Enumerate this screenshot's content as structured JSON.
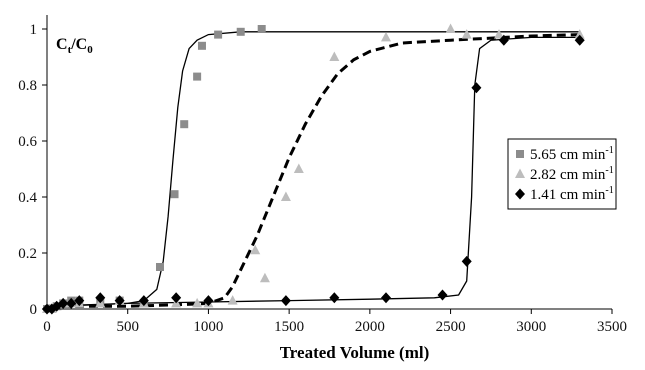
{
  "chart_data": {
    "type": "scatter",
    "xlabel": "Treated Volume (ml)",
    "ylabel": "Ct/C0",
    "xlim": [
      0,
      3500
    ],
    "ylim": [
      0,
      1.05
    ],
    "x_ticks": [
      "0",
      "500",
      "1000",
      "1500",
      "2000",
      "2500",
      "3000",
      "3500"
    ],
    "y_ticks": [
      "0",
      "0.2",
      "0.4",
      "0.6",
      "0.8",
      "1"
    ],
    "grid": false,
    "legend_position": "right",
    "series": [
      {
        "name": "5.65 cm min-1",
        "legend_main": "5.65 cm min",
        "legend_sup": "-1",
        "marker": "square",
        "color": "#8c8c8c",
        "points": [
          [
            0,
            0.0
          ],
          [
            30,
            0.0
          ],
          [
            60,
            0.01
          ],
          [
            100,
            0.02
          ],
          [
            150,
            0.03
          ],
          [
            200,
            0.03
          ],
          [
            330,
            0.03
          ],
          [
            450,
            0.03
          ],
          [
            600,
            0.02
          ],
          [
            700,
            0.15
          ],
          [
            790,
            0.41
          ],
          [
            850,
            0.66
          ],
          [
            930,
            0.83
          ],
          [
            960,
            0.94
          ],
          [
            1060,
            0.98
          ],
          [
            1200,
            0.99
          ],
          [
            1330,
            1.0
          ]
        ],
        "fit": [
          [
            0,
            0.01
          ],
          [
            300,
            0.015
          ],
          [
            500,
            0.02
          ],
          [
            600,
            0.03
          ],
          [
            680,
            0.07
          ],
          [
            720,
            0.17
          ],
          [
            750,
            0.33
          ],
          [
            780,
            0.53
          ],
          [
            810,
            0.72
          ],
          [
            840,
            0.85
          ],
          [
            880,
            0.93
          ],
          [
            930,
            0.96
          ],
          [
            1000,
            0.98
          ],
          [
            1200,
            0.99
          ],
          [
            1600,
            0.99
          ],
          [
            2000,
            0.99
          ],
          [
            2500,
            0.99
          ],
          [
            3000,
            0.99
          ],
          [
            3300,
            0.99
          ]
        ],
        "fit_style": "solid"
      },
      {
        "name": "2.82 cm min-1",
        "legend_main": "2.82 cm min",
        "legend_sup": "-1",
        "marker": "triangle",
        "color": "#bdbdbd",
        "points": [
          [
            0,
            0.0
          ],
          [
            30,
            0.0
          ],
          [
            60,
            0.01
          ],
          [
            100,
            0.02
          ],
          [
            150,
            0.02
          ],
          [
            200,
            0.02
          ],
          [
            330,
            0.02
          ],
          [
            450,
            0.03
          ],
          [
            600,
            0.02
          ],
          [
            800,
            0.02
          ],
          [
            930,
            0.02
          ],
          [
            1000,
            0.02
          ],
          [
            1150,
            0.03
          ],
          [
            1290,
            0.21
          ],
          [
            1350,
            0.11
          ],
          [
            1480,
            0.4
          ],
          [
            1560,
            0.5
          ],
          [
            1780,
            0.9
          ],
          [
            2100,
            0.97
          ],
          [
            2500,
            1.0
          ],
          [
            2600,
            0.98
          ],
          [
            2800,
            0.98
          ],
          [
            3300,
            0.98
          ]
        ],
        "fit": [
          [
            0,
            0.01
          ],
          [
            500,
            0.01
          ],
          [
            800,
            0.015
          ],
          [
            1000,
            0.02
          ],
          [
            1100,
            0.04
          ],
          [
            1150,
            0.08
          ],
          [
            1200,
            0.14
          ],
          [
            1300,
            0.26
          ],
          [
            1400,
            0.4
          ],
          [
            1500,
            0.54
          ],
          [
            1600,
            0.66
          ],
          [
            1700,
            0.76
          ],
          [
            1800,
            0.84
          ],
          [
            1900,
            0.89
          ],
          [
            2000,
            0.92
          ],
          [
            2200,
            0.95
          ],
          [
            2500,
            0.96
          ],
          [
            3000,
            0.975
          ],
          [
            3300,
            0.98
          ]
        ],
        "fit_style": "dashed"
      },
      {
        "name": "1.41 cm min-1",
        "legend_main": "1.41 cm min",
        "legend_sup": "-1",
        "marker": "diamond",
        "color": "#000000",
        "points": [
          [
            0,
            0.0
          ],
          [
            30,
            0.0
          ],
          [
            60,
            0.01
          ],
          [
            100,
            0.02
          ],
          [
            150,
            0.02
          ],
          [
            200,
            0.03
          ],
          [
            330,
            0.04
          ],
          [
            450,
            0.03
          ],
          [
            600,
            0.03
          ],
          [
            800,
            0.04
          ],
          [
            1000,
            0.03
          ],
          [
            1480,
            0.03
          ],
          [
            1780,
            0.04
          ],
          [
            2100,
            0.04
          ],
          [
            2450,
            0.05
          ],
          [
            2600,
            0.17
          ],
          [
            2660,
            0.79
          ],
          [
            2830,
            0.96
          ],
          [
            3300,
            0.96
          ]
        ],
        "fit": [
          [
            0,
            0.01
          ],
          [
            500,
            0.02
          ],
          [
            1000,
            0.025
          ],
          [
            1500,
            0.03
          ],
          [
            2000,
            0.035
          ],
          [
            2400,
            0.04
          ],
          [
            2550,
            0.05
          ],
          [
            2600,
            0.1
          ],
          [
            2630,
            0.4
          ],
          [
            2650,
            0.8
          ],
          [
            2680,
            0.93
          ],
          [
            2750,
            0.96
          ],
          [
            3000,
            0.97
          ],
          [
            3300,
            0.97
          ]
        ],
        "fit_style": "solid"
      }
    ]
  }
}
